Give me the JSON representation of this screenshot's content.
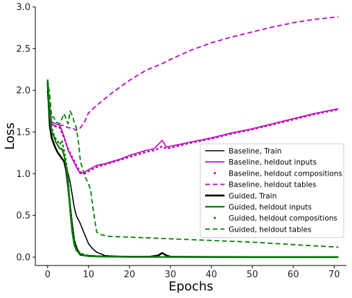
{
  "chart_data": {
    "type": "line",
    "title": "",
    "xlabel": "Epochs",
    "ylabel": "Loss",
    "xlim": [
      -3,
      73
    ],
    "ylim": [
      -0.1,
      3.0
    ],
    "xticks": [
      0,
      10,
      20,
      30,
      40,
      50,
      60,
      70
    ],
    "xtick_labels": [
      "0",
      "10",
      "20",
      "30",
      "40",
      "50",
      "60",
      "70"
    ],
    "yticks": [
      0.0,
      0.5,
      1.0,
      1.5,
      2.0,
      2.5,
      3.0
    ],
    "ytick_labels": [
      "0.0",
      "0.5",
      "1.0",
      "1.5",
      "2.0",
      "2.5",
      "3.0"
    ],
    "legend_position": "center-right",
    "series": [
      {
        "name": "Baseline, Train",
        "color": "#000000",
        "style": "solid",
        "width": 1.6,
        "x": [
          0,
          0.5,
          1,
          1.5,
          2,
          2.5,
          3,
          3.5,
          4,
          4.5,
          5,
          5.5,
          6,
          6.5,
          7,
          7.5,
          8,
          8.5,
          9,
          9.5,
          10,
          11,
          12,
          13,
          14,
          15,
          17,
          20,
          25,
          30,
          40,
          50,
          60,
          71
        ],
        "y": [
          2.05,
          1.55,
          1.42,
          1.35,
          1.3,
          1.25,
          1.22,
          1.18,
          1.15,
          1.1,
          1.0,
          0.9,
          0.75,
          0.6,
          0.5,
          0.45,
          0.4,
          0.34,
          0.28,
          0.22,
          0.16,
          0.1,
          0.06,
          0.04,
          0.02,
          0.015,
          0.01,
          0.005,
          0.003,
          0.002,
          0.001,
          0.001,
          0.001,
          0.001
        ]
      },
      {
        "name": "Baseline, heldout inputs",
        "color": "#bf00bf",
        "style": "solid",
        "width": 1.6,
        "x": [
          0,
          1,
          2,
          3,
          4,
          5,
          6,
          7,
          8,
          9,
          10,
          12,
          14,
          16,
          18,
          20,
          22,
          24,
          26,
          27,
          28,
          29,
          30,
          35,
          40,
          45,
          50,
          55,
          60,
          65,
          71
        ],
        "y": [
          2.0,
          1.62,
          1.6,
          1.58,
          1.45,
          1.28,
          1.18,
          1.08,
          1.0,
          1.02,
          1.05,
          1.1,
          1.12,
          1.15,
          1.18,
          1.22,
          1.25,
          1.28,
          1.3,
          1.35,
          1.4,
          1.32,
          1.33,
          1.38,
          1.43,
          1.49,
          1.54,
          1.6,
          1.66,
          1.72,
          1.78
        ]
      },
      {
        "name": "Baseline, heldout compositions",
        "color": "#bf00bf",
        "style": "dotted",
        "width": 2.4,
        "x": [
          0,
          1,
          2,
          3,
          4,
          5,
          6,
          7,
          8,
          9,
          10,
          12,
          14,
          16,
          18,
          20,
          22,
          24,
          26,
          27,
          28,
          29,
          30,
          35,
          40,
          45,
          50,
          55,
          60,
          65,
          71
        ],
        "y": [
          1.98,
          1.6,
          1.57,
          1.55,
          1.43,
          1.3,
          1.2,
          1.1,
          1.02,
          1.0,
          1.03,
          1.08,
          1.11,
          1.14,
          1.17,
          1.2,
          1.23,
          1.26,
          1.28,
          1.3,
          1.33,
          1.3,
          1.31,
          1.37,
          1.42,
          1.48,
          1.53,
          1.59,
          1.65,
          1.71,
          1.77
        ]
      },
      {
        "name": "Baseline, heldout tables",
        "color": "#bf00bf",
        "style": "dashed",
        "width": 1.8,
        "x": [
          0,
          0.5,
          1,
          2,
          3,
          4,
          5,
          6,
          7,
          8,
          9,
          10,
          12,
          14,
          16,
          18,
          20,
          22,
          24,
          26,
          28,
          30,
          35,
          40,
          45,
          50,
          55,
          60,
          65,
          71
        ],
        "y": [
          1.95,
          1.75,
          1.6,
          1.56,
          1.58,
          1.58,
          1.55,
          1.55,
          1.52,
          1.55,
          1.62,
          1.73,
          1.82,
          1.9,
          1.98,
          2.05,
          2.12,
          2.18,
          2.24,
          2.28,
          2.32,
          2.37,
          2.48,
          2.57,
          2.64,
          2.7,
          2.76,
          2.81,
          2.85,
          2.88
        ]
      },
      {
        "name": "Guided, Train",
        "color": "#000000",
        "style": "solid",
        "width": 2.6,
        "x": [
          0,
          0.5,
          1,
          1.5,
          2,
          2.5,
          3,
          3.5,
          4,
          4.5,
          5,
          5.5,
          6,
          6.5,
          7,
          7.5,
          8,
          9,
          10,
          12,
          15,
          20,
          25,
          27,
          28,
          29,
          30,
          35,
          40,
          50,
          60,
          71
        ],
        "y": [
          2.1,
          1.6,
          1.43,
          1.36,
          1.3,
          1.25,
          1.22,
          1.18,
          1.15,
          1.05,
          0.85,
          0.6,
          0.38,
          0.2,
          0.12,
          0.06,
          0.03,
          0.02,
          0.015,
          0.01,
          0.008,
          0.005,
          0.005,
          0.02,
          0.05,
          0.02,
          0.005,
          0.003,
          0.002,
          0.001,
          0.001,
          0.001
        ]
      },
      {
        "name": "Guided, heldout inputs",
        "color": "#008000",
        "style": "solid",
        "width": 2.2,
        "x": [
          0,
          0.5,
          1,
          1.5,
          2,
          3,
          3.5,
          4,
          4.5,
          5,
          5.5,
          6,
          6.5,
          7,
          8,
          9,
          10,
          12,
          15,
          20,
          30,
          40,
          50,
          60,
          71
        ],
        "y": [
          2.13,
          1.7,
          1.5,
          1.45,
          1.38,
          1.3,
          1.3,
          1.22,
          1.1,
          0.9,
          0.55,
          0.3,
          0.15,
          0.08,
          0.04,
          0.02,
          0.01,
          0.008,
          0.005,
          0.003,
          0.002,
          0.002,
          0.002,
          0.002,
          0.002
        ]
      },
      {
        "name": "Guided, heldout compositions",
        "color": "#008000",
        "style": "dotted",
        "width": 2.4,
        "x": [
          0,
          0.5,
          1,
          1.5,
          2,
          3,
          3.5,
          4,
          4.5,
          5,
          5.5,
          6,
          6.5,
          7,
          8,
          9,
          10,
          12,
          15,
          20,
          30,
          40,
          50,
          60,
          71
        ],
        "y": [
          2.12,
          1.8,
          1.55,
          1.47,
          1.42,
          1.35,
          1.4,
          1.28,
          1.15,
          0.95,
          0.62,
          0.35,
          0.18,
          0.1,
          0.05,
          0.03,
          0.02,
          0.01,
          0.008,
          0.005,
          0.003,
          0.003,
          0.003,
          0.003,
          0.003
        ]
      },
      {
        "name": "Guided, heldout tables",
        "color": "#008000",
        "style": "dashed",
        "width": 1.8,
        "x": [
          0,
          0.5,
          1,
          1.5,
          2,
          3,
          4,
          5,
          5.5,
          6,
          6.5,
          7,
          7.5,
          8,
          9,
          10,
          10.5,
          11,
          11.5,
          12,
          13,
          14,
          15,
          20,
          30,
          40,
          50,
          60,
          71
        ],
        "y": [
          2.13,
          1.95,
          1.68,
          1.68,
          1.62,
          1.6,
          1.72,
          1.6,
          1.75,
          1.7,
          1.62,
          1.55,
          1.4,
          1.15,
          0.98,
          0.88,
          0.8,
          0.62,
          0.45,
          0.3,
          0.27,
          0.26,
          0.25,
          0.24,
          0.22,
          0.2,
          0.18,
          0.15,
          0.12
        ]
      }
    ]
  }
}
